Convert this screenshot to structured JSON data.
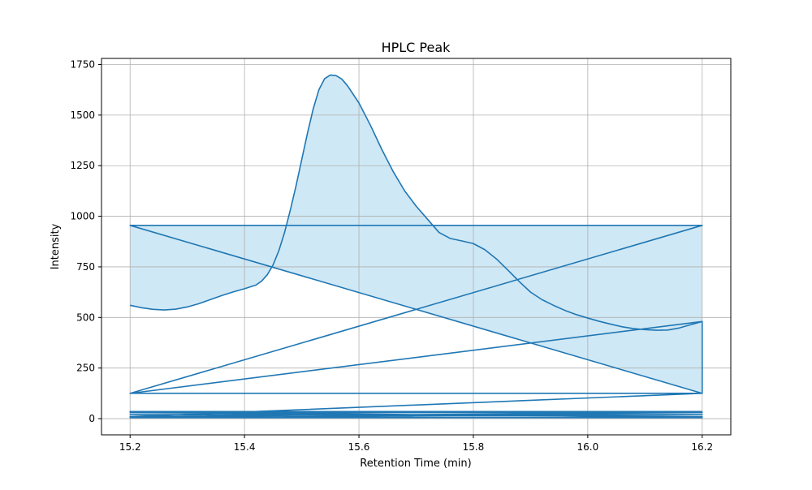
{
  "chart_data": {
    "type": "area",
    "title": "HPLC Peak",
    "xlabel": "Retention Time (min)",
    "ylabel": "Intensity",
    "xlim": [
      15.15,
      16.25
    ],
    "ylim": [
      -80,
      1780
    ],
    "xticks": [
      15.2,
      15.4,
      15.6,
      15.8,
      16.0,
      16.2
    ],
    "xtick_labels": [
      "15.2",
      "15.4",
      "15.6",
      "15.8",
      "16.0",
      "16.2"
    ],
    "yticks": [
      0,
      250,
      500,
      750,
      1000,
      1250,
      1500,
      1750
    ],
    "ytick_labels": [
      "0",
      "250",
      "500",
      "750",
      "1000",
      "1250",
      "1500",
      "1750"
    ],
    "grid": true,
    "colors": {
      "line": "#1f77b4",
      "fill": "#cfe8f5",
      "grid": "#b0b0b0",
      "axes": "#000000"
    },
    "series": [
      {
        "points": [
          [
            15.2,
            560
          ],
          [
            15.22,
            548
          ],
          [
            15.24,
            540
          ],
          [
            15.26,
            537
          ],
          [
            15.28,
            541
          ],
          [
            15.3,
            552
          ],
          [
            15.32,
            568
          ],
          [
            15.34,
            588
          ],
          [
            15.36,
            608
          ],
          [
            15.38,
            626
          ],
          [
            15.4,
            642
          ],
          [
            15.42,
            660
          ],
          [
            15.43,
            680
          ],
          [
            15.44,
            712
          ],
          [
            15.45,
            760
          ],
          [
            15.46,
            830
          ],
          [
            15.47,
            920
          ],
          [
            15.48,
            1030
          ],
          [
            15.49,
            1150
          ],
          [
            15.5,
            1280
          ],
          [
            15.51,
            1410
          ],
          [
            15.52,
            1530
          ],
          [
            15.53,
            1625
          ],
          [
            15.54,
            1680
          ],
          [
            15.55,
            1698
          ],
          [
            15.56,
            1695
          ],
          [
            15.57,
            1678
          ],
          [
            15.58,
            1645
          ],
          [
            15.6,
            1560
          ],
          [
            15.62,
            1450
          ],
          [
            15.64,
            1330
          ],
          [
            15.66,
            1220
          ],
          [
            15.68,
            1125
          ],
          [
            15.7,
            1050
          ],
          [
            15.72,
            985
          ],
          [
            15.74,
            920
          ],
          [
            15.76,
            890
          ],
          [
            15.78,
            878
          ],
          [
            15.8,
            865
          ],
          [
            15.82,
            835
          ],
          [
            15.84,
            790
          ],
          [
            15.86,
            735
          ],
          [
            15.88,
            678
          ],
          [
            15.9,
            625
          ],
          [
            15.92,
            588
          ],
          [
            15.94,
            560
          ],
          [
            15.96,
            535
          ],
          [
            15.98,
            514
          ],
          [
            16.0,
            497
          ],
          [
            16.02,
            481
          ],
          [
            16.04,
            467
          ],
          [
            16.06,
            454
          ],
          [
            16.08,
            445
          ],
          [
            16.1,
            440
          ],
          [
            16.12,
            437
          ],
          [
            16.14,
            438
          ],
          [
            16.16,
            448
          ],
          [
            16.18,
            464
          ],
          [
            16.2,
            480
          ],
          [
            15.2,
            125
          ],
          [
            16.2,
            955
          ],
          [
            15.2,
            955
          ],
          [
            16.2,
            125
          ],
          [
            15.2,
            125
          ],
          [
            16.2,
            480
          ],
          [
            16.2,
            125
          ],
          [
            15.2,
            10
          ],
          [
            16.2,
            30
          ],
          [
            15.2,
            30
          ],
          [
            16.2,
            10
          ],
          [
            15.2,
            20
          ],
          [
            16.2,
            20
          ],
          [
            15.2,
            5
          ],
          [
            16.2,
            5
          ],
          [
            15.2,
            35
          ],
          [
            16.2,
            35
          ]
        ],
        "band_lower": [
          [
            15.2,
            125
          ],
          [
            16.2,
            125
          ],
          [
            15.2,
            955
          ],
          [
            15.6,
            955
          ],
          [
            16.2,
            955
          ]
        ]
      }
    ]
  }
}
